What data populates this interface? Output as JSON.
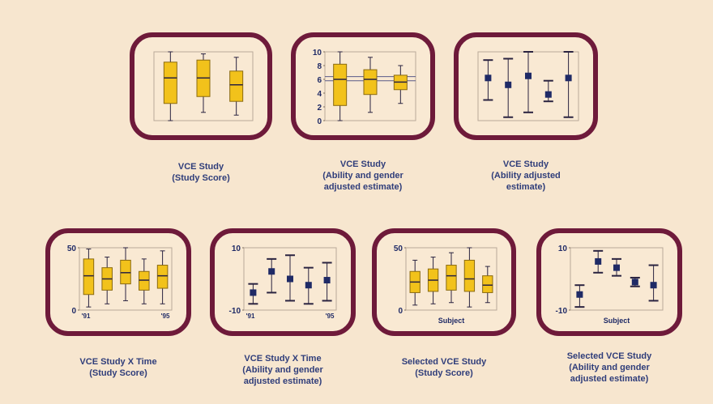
{
  "colors": {
    "background": "#f7e6cf",
    "frame": "#6e1a3a",
    "caption_text": "#2f3d7a",
    "box_fill": "#f2c21b",
    "whisker": "#2a2340",
    "point": "#1f2a66"
  },
  "panels": [
    {
      "id": "vce-study-score",
      "caption": [
        "VCE Study",
        "(Study Score)"
      ],
      "plot": {
        "type": "box",
        "axis_labels": [],
        "x_labels": [],
        "boxes": [
          {
            "min": 0,
            "q1": 0.25,
            "median": 0.62,
            "q3": 0.85,
            "max": 1.0
          },
          {
            "min": 0.12,
            "q1": 0.35,
            "median": 0.62,
            "q3": 0.88,
            "max": 0.97
          },
          {
            "min": 0.08,
            "q1": 0.28,
            "median": 0.52,
            "q3": 0.72,
            "max": 0.92
          }
        ]
      }
    },
    {
      "id": "vce-study-ability-gender",
      "caption": [
        "VCE Study",
        "(Ability and gender",
        "adjusted estimate)"
      ],
      "plot": {
        "type": "box",
        "axis_labels": [
          "10",
          "8",
          "6",
          "4",
          "2",
          "0"
        ],
        "x_labels": [],
        "ref_lines": [
          0.58,
          0.64
        ],
        "boxes": [
          {
            "min": 0.0,
            "q1": 0.22,
            "median": 0.6,
            "q3": 0.82,
            "max": 1.0
          },
          {
            "min": 0.12,
            "q1": 0.38,
            "median": 0.6,
            "q3": 0.74,
            "max": 0.92
          },
          {
            "min": 0.25,
            "q1": 0.45,
            "median": 0.56,
            "q3": 0.66,
            "max": 0.8
          }
        ]
      }
    },
    {
      "id": "vce-study-ability",
      "caption": [
        "VCE Study",
        "(Ability adjusted",
        "estimate)"
      ],
      "plot": {
        "type": "errorbar",
        "axis_labels": [],
        "x_labels": [],
        "points": [
          {
            "low": 0.3,
            "mid": 0.62,
            "high": 0.88
          },
          {
            "low": 0.05,
            "mid": 0.52,
            "high": 0.9
          },
          {
            "low": 0.12,
            "mid": 0.65,
            "high": 1.0
          },
          {
            "low": 0.28,
            "mid": 0.38,
            "high": 0.58
          },
          {
            "low": 0.05,
            "mid": 0.62,
            "high": 1.0
          }
        ]
      }
    },
    {
      "id": "vce-study-x-time",
      "caption": [
        "VCE Study X Time",
        "(Study Score)"
      ],
      "plot": {
        "type": "box",
        "axis_labels": [
          "50",
          "",
          "0"
        ],
        "x_labels": [
          "'91",
          "'95"
        ],
        "boxes": [
          {
            "min": 0.05,
            "q1": 0.25,
            "median": 0.55,
            "q3": 0.82,
            "max": 0.98
          },
          {
            "min": 0.1,
            "q1": 0.32,
            "median": 0.5,
            "q3": 0.68,
            "max": 0.85
          },
          {
            "min": 0.15,
            "q1": 0.42,
            "median": 0.6,
            "q3": 0.8,
            "max": 1.0
          },
          {
            "min": 0.1,
            "q1": 0.32,
            "median": 0.48,
            "q3": 0.62,
            "max": 0.82
          },
          {
            "min": 0.1,
            "q1": 0.35,
            "median": 0.55,
            "q3": 0.72,
            "max": 0.95
          }
        ]
      }
    },
    {
      "id": "vce-study-x-time-ability-gender",
      "caption": [
        "VCE Study X Time",
        "(Ability and gender",
        "adjusted estimate)"
      ],
      "plot": {
        "type": "errorbar",
        "axis_labels": [
          "10",
          "",
          "-10"
        ],
        "x_labels": [
          "'91",
          "'95"
        ],
        "points": [
          {
            "low": 0.1,
            "mid": 0.28,
            "high": 0.42
          },
          {
            "low": 0.28,
            "mid": 0.62,
            "high": 0.82
          },
          {
            "low": 0.15,
            "mid": 0.5,
            "high": 0.88
          },
          {
            "low": 0.1,
            "mid": 0.4,
            "high": 0.68
          },
          {
            "low": 0.15,
            "mid": 0.48,
            "high": 0.76
          }
        ]
      }
    },
    {
      "id": "selected-vce-study-score",
      "caption": [
        "Selected VCE Study",
        "(Study Score)"
      ],
      "plot": {
        "type": "box",
        "axis_labels": [
          "50",
          "",
          "0"
        ],
        "x_labels": [
          "Subject"
        ],
        "boxes": [
          {
            "min": 0.08,
            "q1": 0.28,
            "median": 0.45,
            "q3": 0.62,
            "max": 0.8
          },
          {
            "min": 0.1,
            "q1": 0.3,
            "median": 0.48,
            "q3": 0.66,
            "max": 0.85
          },
          {
            "min": 0.12,
            "q1": 0.32,
            "median": 0.55,
            "q3": 0.72,
            "max": 0.92
          },
          {
            "min": 0.05,
            "q1": 0.3,
            "median": 0.5,
            "q3": 0.8,
            "max": 1.0
          },
          {
            "min": 0.12,
            "q1": 0.28,
            "median": 0.4,
            "q3": 0.55,
            "max": 0.7
          }
        ]
      }
    },
    {
      "id": "selected-vce-study-ability-gender",
      "caption": [
        "Selected VCE Study",
        "(Ability and gender",
        "adjusted estimate)"
      ],
      "plot": {
        "type": "errorbar",
        "axis_labels": [
          "10",
          "",
          "-10"
        ],
        "x_labels": [
          "Subject"
        ],
        "points": [
          {
            "low": 0.05,
            "mid": 0.25,
            "high": 0.4
          },
          {
            "low": 0.6,
            "mid": 0.78,
            "high": 0.95
          },
          {
            "low": 0.55,
            "mid": 0.68,
            "high": 0.82
          },
          {
            "low": 0.38,
            "mid": 0.45,
            "high": 0.52
          },
          {
            "low": 0.15,
            "mid": 0.4,
            "high": 0.72
          }
        ]
      }
    }
  ]
}
